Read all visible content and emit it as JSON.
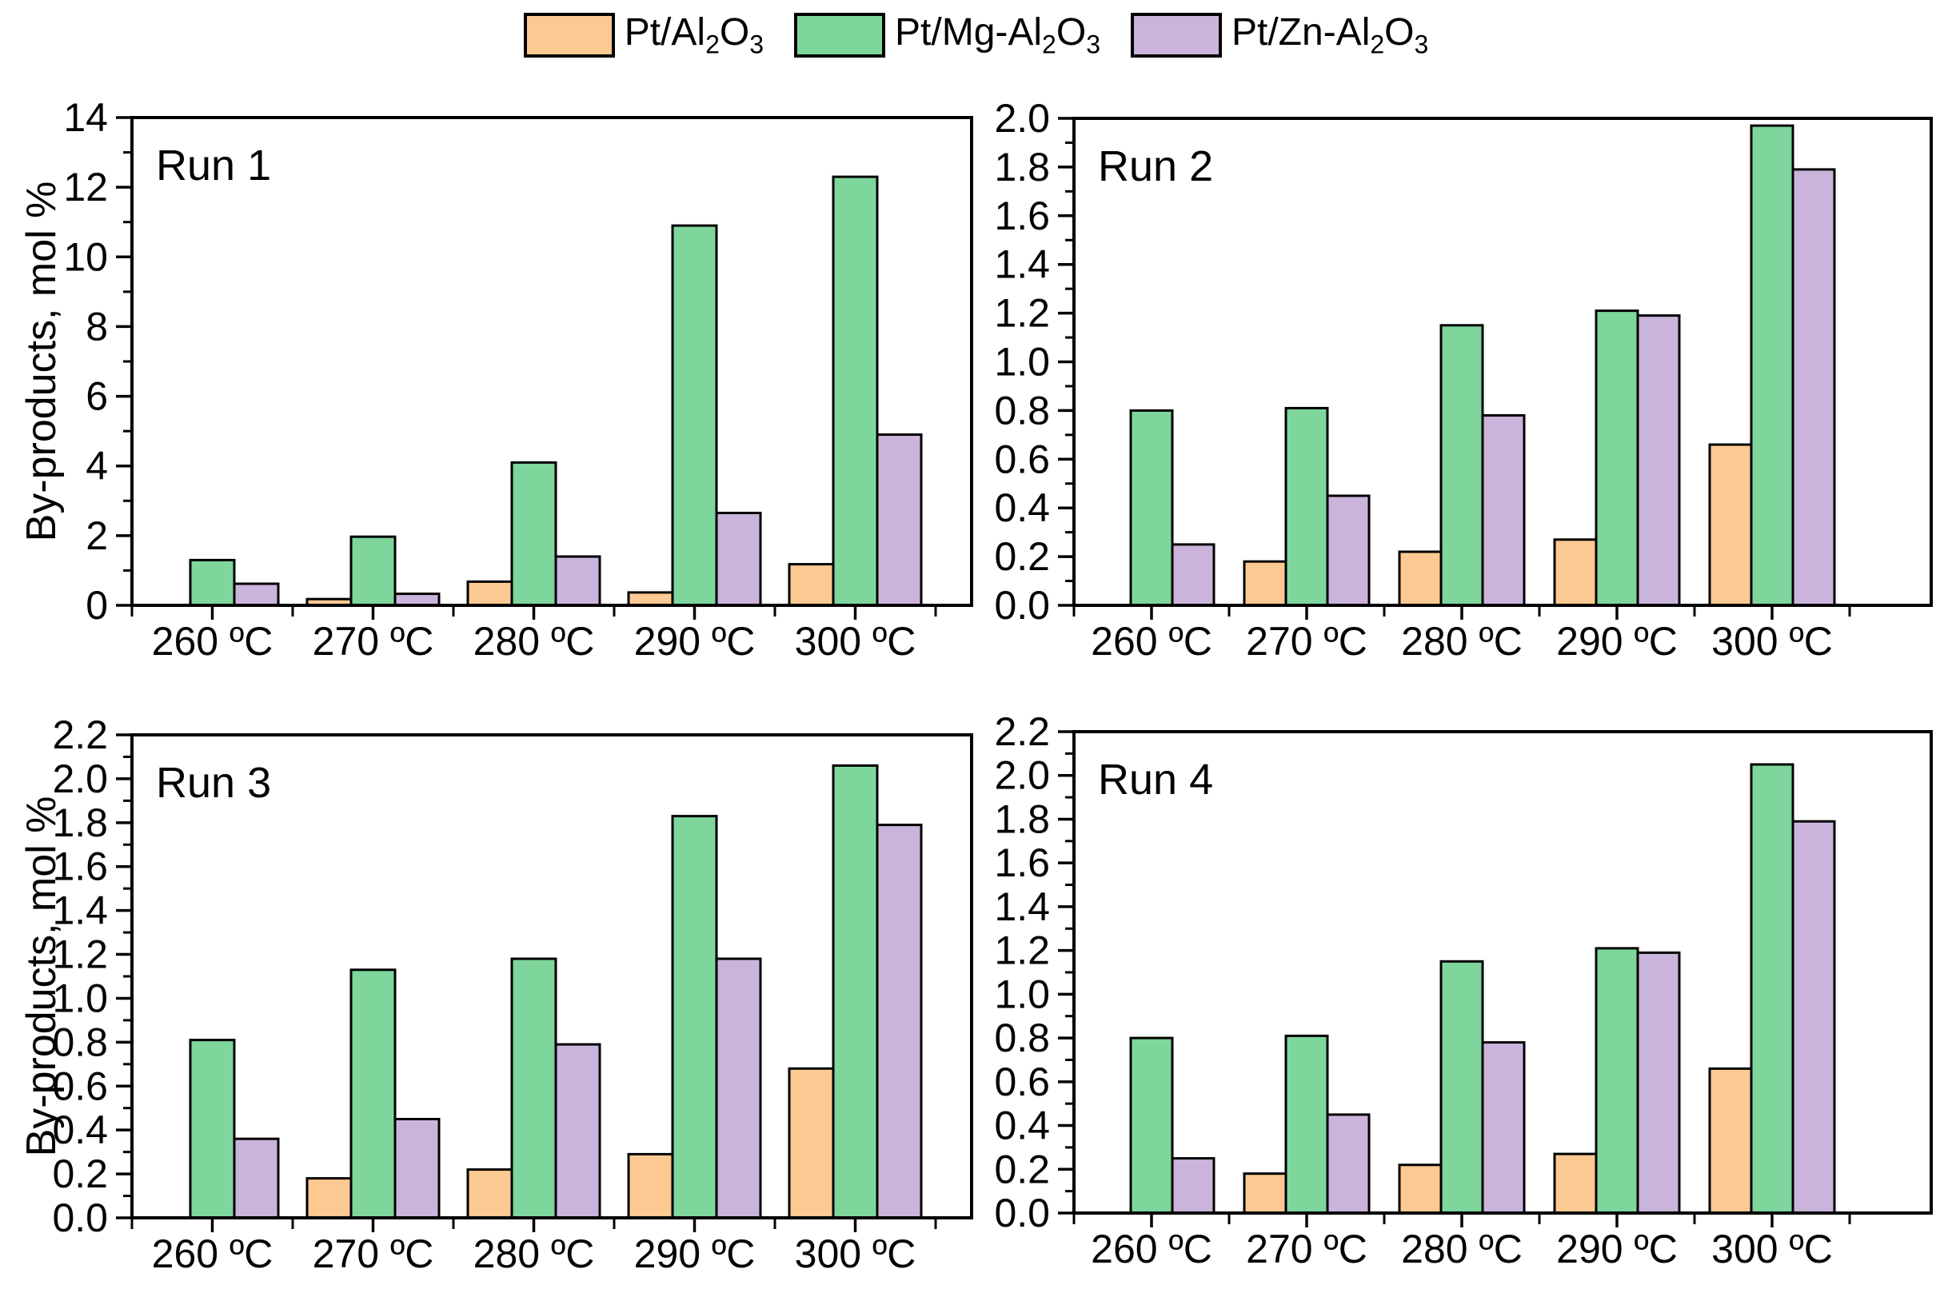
{
  "page": {
    "background": "#ffffff",
    "edge_color": "#000000"
  },
  "axes": {
    "y_title": "By-products, mol %"
  },
  "legend": {
    "items": [
      {
        "label": "Pt/Al_2O_3",
        "color": "#FDC992"
      },
      {
        "label": "Pt/Mg-Al_2O_3",
        "color": "#7ED69C"
      },
      {
        "label": "Pt/Zn-Al_2O_3",
        "color": "#CAB4DC"
      }
    ]
  },
  "chart_data": [
    {
      "type": "bar",
      "title": "Run 1",
      "categories": [
        "260 ºC",
        "270 ºC",
        "280 ºC",
        "290 ºC",
        "300 ºC"
      ],
      "xlabel": "",
      "ylabel": "By-products, mol %",
      "ylim": [
        0,
        14
      ],
      "ytick": 2,
      "yminor": 1,
      "ydecimals": 0,
      "grid": false,
      "legend_position": "top-center-shared",
      "series": [
        {
          "name": "Pt/Al_2O_3",
          "color": "#FDC992",
          "values": [
            0,
            0.18,
            0.68,
            0.37,
            1.18
          ]
        },
        {
          "name": "Pt/Mg-Al_2O_3",
          "color": "#7ED69C",
          "values": [
            1.3,
            1.97,
            4.1,
            10.9,
            12.3
          ]
        },
        {
          "name": "Pt/Zn-Al_2O_3",
          "color": "#CAB4DC",
          "values": [
            0.62,
            0.33,
            1.4,
            2.65,
            4.9
          ]
        }
      ]
    },
    {
      "type": "bar",
      "title": "Run 2",
      "categories": [
        "260 ºC",
        "270 ºC",
        "280 ºC",
        "290 ºC",
        "300 ºC"
      ],
      "xlabel": "",
      "ylabel": "",
      "ylim": [
        0,
        2.0
      ],
      "ytick": 0.2,
      "yminor": 0.1,
      "ydecimals": 1,
      "grid": false,
      "series": [
        {
          "name": "Pt/Al_2O_3",
          "color": "#FDC992",
          "values": [
            0,
            0.18,
            0.22,
            0.27,
            0.66
          ]
        },
        {
          "name": "Pt/Mg-Al_2O_3",
          "color": "#7ED69C",
          "values": [
            0.8,
            0.81,
            1.15,
            1.21,
            1.97
          ]
        },
        {
          "name": "Pt/Zn-Al_2O_3",
          "color": "#CAB4DC",
          "values": [
            0.25,
            0.45,
            0.78,
            1.19,
            1.79
          ]
        }
      ]
    },
    {
      "type": "bar",
      "title": "Run 3",
      "categories": [
        "260 ºC",
        "270 ºC",
        "280 ºC",
        "290 ºC",
        "300 ºC"
      ],
      "xlabel": "",
      "ylabel": "By-products, mol %",
      "ylim": [
        0,
        2.2
      ],
      "ytick": 0.2,
      "yminor": 0.1,
      "ydecimals": 1,
      "grid": false,
      "series": [
        {
          "name": "Pt/Al_2O_3",
          "color": "#FDC992",
          "values": [
            0,
            0.18,
            0.22,
            0.29,
            0.68
          ]
        },
        {
          "name": "Pt/Mg-Al_2O_3",
          "color": "#7ED69C",
          "values": [
            0.81,
            1.13,
            1.18,
            1.83,
            2.06
          ]
        },
        {
          "name": "Pt/Zn-Al_2O_3",
          "color": "#CAB4DC",
          "values": [
            0.36,
            0.45,
            0.79,
            1.18,
            1.79
          ]
        }
      ]
    },
    {
      "type": "bar",
      "title": "Run 4",
      "categories": [
        "260 ºC",
        "270 ºC",
        "280 ºC",
        "290 ºC",
        "300 ºC"
      ],
      "xlabel": "",
      "ylabel": "",
      "ylim": [
        0,
        2.2
      ],
      "ytick": 0.2,
      "yminor": 0.1,
      "ydecimals": 1,
      "grid": false,
      "series": [
        {
          "name": "Pt/Al_2O_3",
          "color": "#FDC992",
          "values": [
            0,
            0.18,
            0.22,
            0.27,
            0.66
          ]
        },
        {
          "name": "Pt/Mg-Al_2O_3",
          "color": "#7ED69C",
          "values": [
            0.8,
            0.81,
            1.15,
            1.21,
            2.05
          ]
        },
        {
          "name": "Pt/Zn-Al_2O_3",
          "color": "#CAB4DC",
          "values": [
            0.25,
            0.45,
            0.78,
            1.19,
            1.79
          ]
        }
      ]
    }
  ]
}
